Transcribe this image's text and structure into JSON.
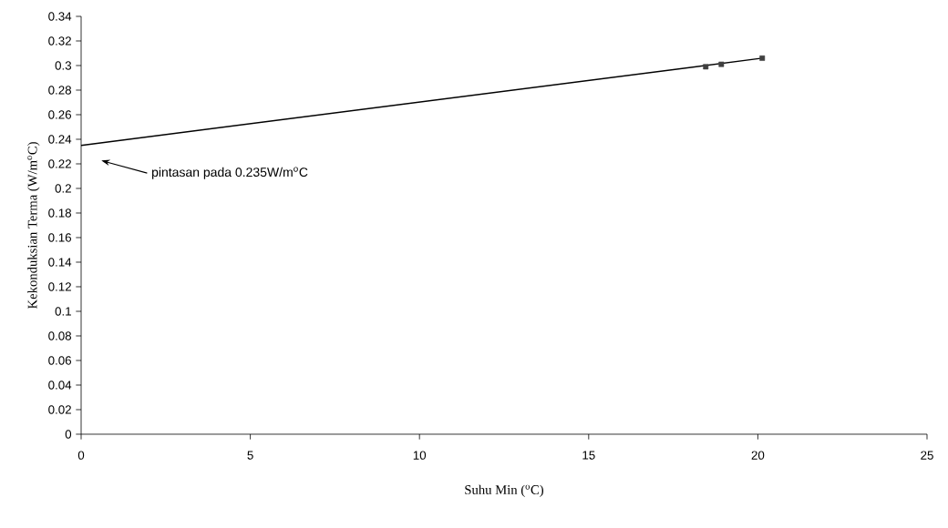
{
  "chart_data": {
    "type": "scatter",
    "xlabel": "Suhu Min ($^{o}$C)",
    "ylabel": "Kekonduksian Terma (W/m$^{o}$C)",
    "series": [
      {
        "x": [
          18.46,
          18.92,
          20.13
        ],
        "values": [
          0.299,
          0.301,
          0.306
        ],
        "color": "#404040",
        "marker": "square"
      },
      {
        "type": "line",
        "x": [
          0,
          20.13
        ],
        "values": [
          0.235,
          0.306
        ],
        "color": "#000000",
        "marker": "none",
        "line_style": "solid"
      }
    ],
    "annotations": [
      "pintasan pada 0.235W/m$^{o}$C"
    ],
    "xlim": [
      0,
      25
    ],
    "ylim": [
      0,
      0.34
    ],
    "xticks": [
      0,
      5,
      10,
      15,
      20,
      25
    ],
    "yticks": [
      0,
      0.02,
      0.04,
      0.06,
      0.08,
      0.1,
      0.12,
      0.14,
      0.16,
      0.18,
      0.2,
      0.22,
      0.24,
      0.26,
      0.28,
      0.3,
      0.32,
      0.34
    ]
  }
}
